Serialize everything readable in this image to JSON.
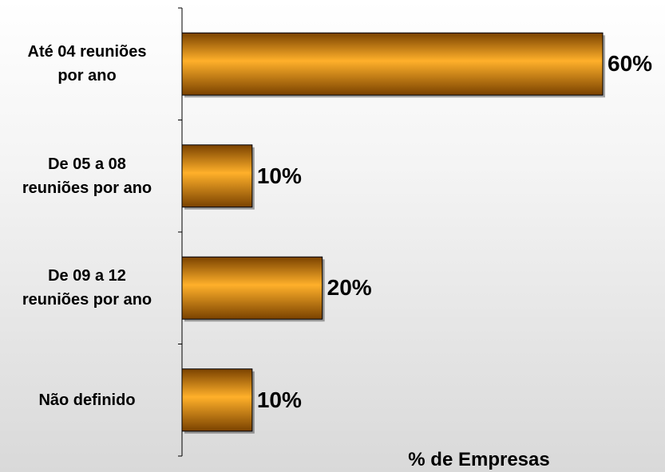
{
  "chart_data": {
    "type": "bar",
    "orientation": "horizontal",
    "categories": [
      "Até 04 reuniões\npor ano",
      "De 05 a 08\nreuniões por ano",
      "De 09 a 12\nreuniões por ano",
      "Não definido"
    ],
    "values": [
      60,
      10,
      20,
      10
    ],
    "value_labels": [
      "60%",
      "10%",
      "20%",
      "10%"
    ],
    "title": "",
    "xlabel": "% de Empresas",
    "ylabel": "",
    "xlim": [
      0,
      60
    ],
    "grid": false,
    "legend": "none",
    "colors": {
      "bar": "#f29000",
      "bar_highlight": "#ffb02a",
      "bar_edge": "#b86400",
      "bar_shadow": "#7a4200",
      "axis": "#000000",
      "text": "#000000"
    }
  }
}
